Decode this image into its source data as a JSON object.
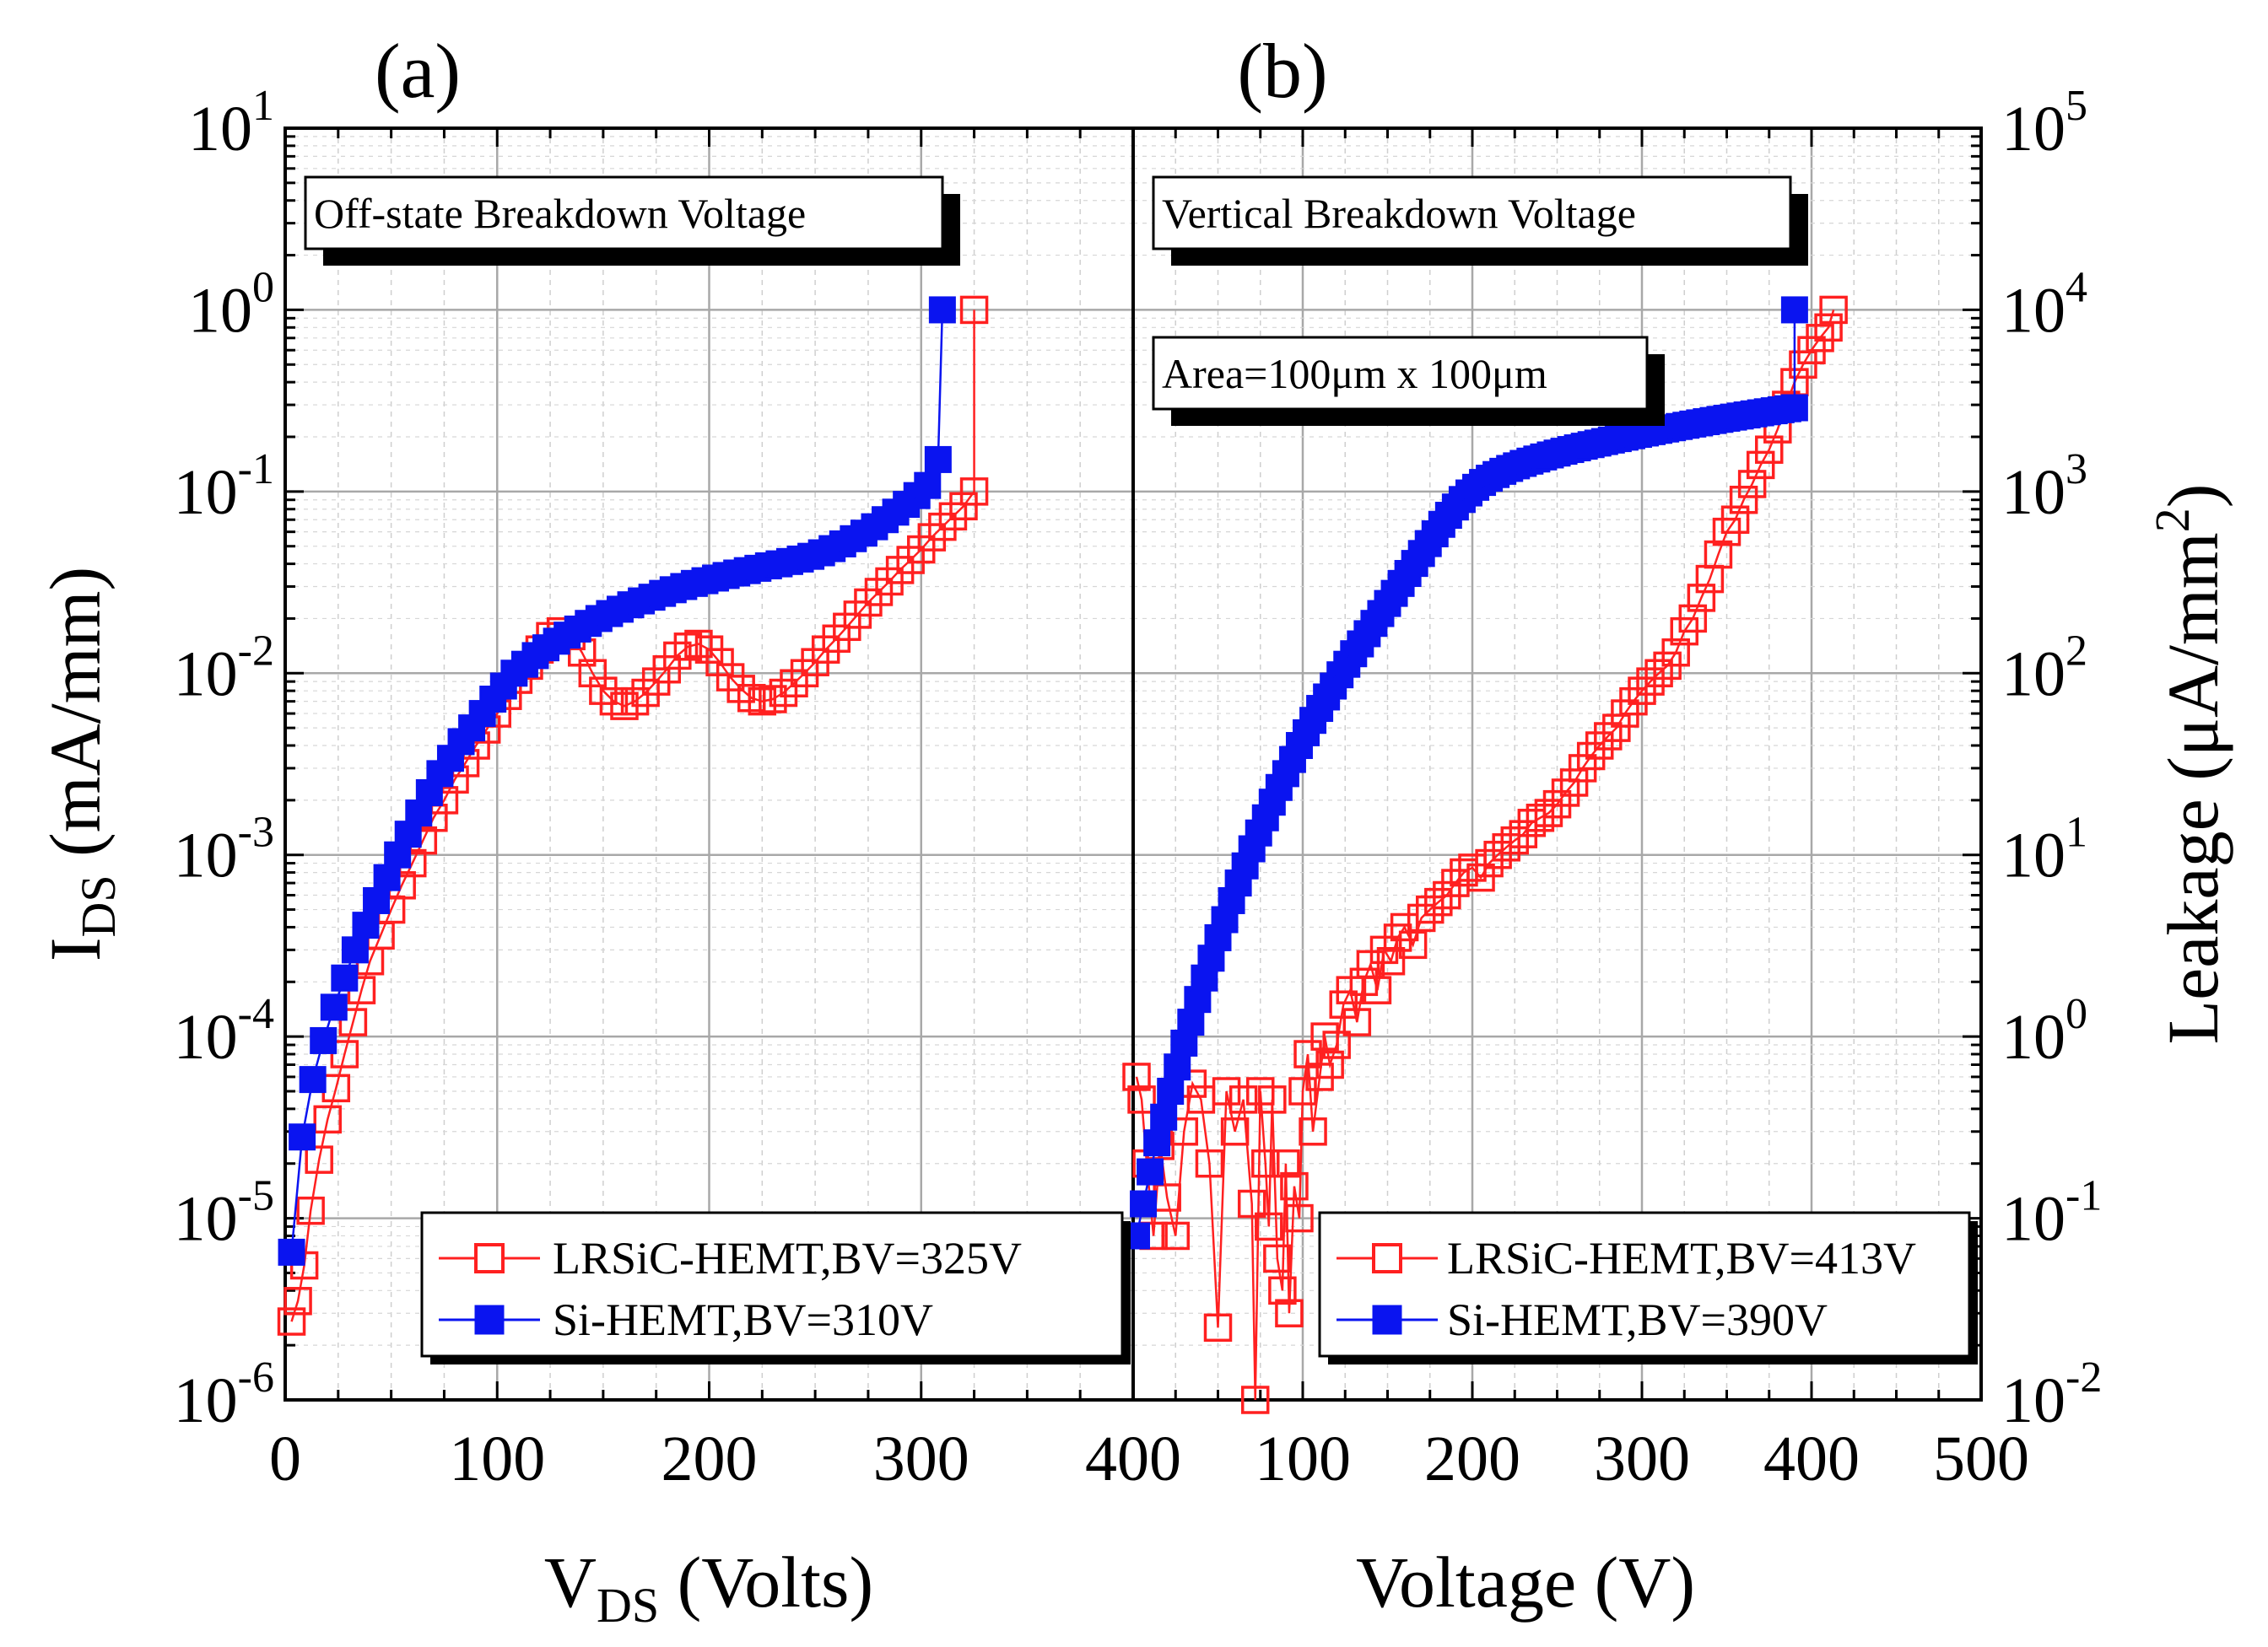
{
  "chart_data": [
    {
      "type": "scatter",
      "panel_label": "(a)",
      "annotation": "Off-state Breakdown Voltage",
      "xlabel": "V",
      "xlabel_sub": "DS",
      "xlabel_suffix": " (Volts)",
      "ylabel": "I",
      "ylabel_sub": "DS",
      "ylabel_suffix": " (mA/mm)",
      "yscale": "log",
      "xlim": [
        0,
        400
      ],
      "ylim": [
        1e-06,
        10
      ],
      "x_ticks": [
        "0",
        "100",
        "200",
        "300"
      ],
      "y_ticks": [
        {
          "base": "10",
          "exp": "1"
        },
        {
          "base": "10",
          "exp": "0"
        },
        {
          "base": "10",
          "exp": "-1"
        },
        {
          "base": "10",
          "exp": "-2"
        },
        {
          "base": "10",
          "exp": "-3"
        },
        {
          "base": "10",
          "exp": "-4"
        },
        {
          "base": "10",
          "exp": "-5"
        },
        {
          "base": "10",
          "exp": "-6"
        }
      ],
      "grid": true,
      "legend_position": "bottom-right",
      "series": [
        {
          "name": "LRSiC-HEMT,BV=325V",
          "color": "#ff2020",
          "marker": "open-square",
          "x": [
            3,
            6,
            9,
            12,
            16,
            20,
            24,
            28,
            32,
            36,
            40,
            45,
            50,
            55,
            60,
            65,
            70,
            75,
            80,
            85,
            90,
            95,
            100,
            105,
            110,
            115,
            120,
            125,
            130,
            135,
            140,
            145,
            150,
            155,
            160,
            165,
            170,
            175,
            180,
            185,
            190,
            195,
            200,
            205,
            210,
            215,
            220,
            225,
            230,
            235,
            240,
            245,
            250,
            255,
            260,
            265,
            270,
            275,
            280,
            285,
            290,
            295,
            300,
            305,
            310,
            315,
            320,
            325,
            325
          ],
          "y": [
            2.7e-06,
            3.5e-06,
            5.5e-06,
            1.1e-05,
            2.1e-05,
            3.5e-05,
            5.2e-05,
            8e-05,
            0.00012,
            0.00018,
            0.00026,
            0.00036,
            0.0005,
            0.00068,
            0.0009,
            0.0012,
            0.0016,
            0.002,
            0.0026,
            0.0032,
            0.004,
            0.0049,
            0.006,
            0.0075,
            0.0092,
            0.011,
            0.0135,
            0.016,
            0.017,
            0.016,
            0.013,
            0.01,
            0.008,
            0.007,
            0.0066,
            0.007,
            0.0078,
            0.009,
            0.0105,
            0.0125,
            0.014,
            0.0145,
            0.0135,
            0.0115,
            0.0095,
            0.0082,
            0.0073,
            0.007,
            0.0072,
            0.0078,
            0.0088,
            0.01,
            0.0115,
            0.0135,
            0.0155,
            0.018,
            0.021,
            0.0245,
            0.028,
            0.032,
            0.037,
            0.042,
            0.048,
            0.056,
            0.064,
            0.073,
            0.083,
            0.1,
            1.0
          ]
        },
        {
          "name": "Si-HEMT,BV=310V",
          "color": "#0a14f0",
          "marker": "filled-square",
          "x": [
            3,
            8,
            13,
            18,
            23,
            28,
            33,
            38,
            43,
            48,
            53,
            58,
            63,
            68,
            73,
            78,
            83,
            88,
            93,
            98,
            103,
            108,
            113,
            118,
            123,
            128,
            133,
            138,
            143,
            148,
            153,
            158,
            163,
            168,
            173,
            178,
            183,
            188,
            193,
            198,
            203,
            208,
            213,
            218,
            223,
            228,
            233,
            238,
            243,
            248,
            253,
            258,
            263,
            268,
            273,
            278,
            283,
            288,
            293,
            298,
            303,
            308,
            310
          ],
          "y": [
            6.5e-06,
            2.8e-05,
            5.8e-05,
            9.5e-05,
            0.000145,
            0.00021,
            0.0003,
            0.00041,
            0.00056,
            0.00075,
            0.001,
            0.0013,
            0.0017,
            0.0022,
            0.0028,
            0.0034,
            0.0042,
            0.005,
            0.006,
            0.0072,
            0.0085,
            0.01,
            0.0112,
            0.0125,
            0.0138,
            0.015,
            0.0162,
            0.0175,
            0.0188,
            0.02,
            0.0213,
            0.0225,
            0.0238,
            0.025,
            0.0262,
            0.0275,
            0.0288,
            0.03,
            0.0312,
            0.0323,
            0.0334,
            0.0345,
            0.0356,
            0.0367,
            0.0378,
            0.039,
            0.04,
            0.0412,
            0.0425,
            0.044,
            0.046,
            0.0485,
            0.0515,
            0.055,
            0.059,
            0.064,
            0.07,
            0.077,
            0.085,
            0.095,
            0.108,
            0.15,
            1.0
          ]
        }
      ]
    },
    {
      "type": "scatter",
      "panel_label": "(b)",
      "annotation": "Vertical Breakdown  Voltage",
      "annotation2": "Area=100μm x 100μm",
      "xlabel": "Voltage (V)",
      "ylabel": "Leakage (μA/mm",
      "ylabel_sup": "2",
      "ylabel_suffix": ")",
      "yscale": "log",
      "xlim": [
        0,
        500
      ],
      "ylim": [
        0.01,
        100000
      ],
      "x_ticks": [
        "400",
        "100",
        "200",
        "300",
        "400",
        "500"
      ],
      "y_ticks": [
        {
          "base": "10",
          "exp": "5"
        },
        {
          "base": "10",
          "exp": "4"
        },
        {
          "base": "10",
          "exp": "3"
        },
        {
          "base": "10",
          "exp": "2"
        },
        {
          "base": "10",
          "exp": "1"
        },
        {
          "base": "10",
          "exp": "0"
        },
        {
          "base": "10",
          "exp": "-1"
        },
        {
          "base": "10",
          "exp": "-2"
        }
      ],
      "grid": true,
      "legend_position": "bottom-right",
      "series": [
        {
          "name": "LRSiC-HEMT,BV=413V",
          "color": "#ff2020",
          "marker": "open-square",
          "x": [
            2,
            5,
            8,
            12,
            16,
            20,
            25,
            30,
            35,
            40,
            45,
            50,
            55,
            60,
            65,
            70,
            72,
            75,
            78,
            80,
            82,
            85,
            88,
            90,
            92,
            95,
            98,
            100,
            103,
            106,
            110,
            113,
            116,
            120,
            124,
            128,
            132,
            136,
            140,
            144,
            148,
            152,
            156,
            160,
            165,
            170,
            175,
            180,
            185,
            190,
            195,
            200,
            205,
            210,
            215,
            220,
            225,
            230,
            235,
            240,
            245,
            250,
            255,
            260,
            265,
            270,
            275,
            280,
            285,
            290,
            295,
            300,
            305,
            310,
            315,
            320,
            325,
            330,
            335,
            340,
            345,
            350,
            355,
            360,
            365,
            370,
            375,
            380,
            385,
            390,
            395,
            400,
            405,
            410,
            413
          ],
          "y": [
            0.6,
            0.45,
            0.2,
            0.08,
            0.25,
            0.13,
            0.08,
            0.3,
            0.55,
            0.45,
            0.2,
            0.025,
            0.5,
            0.3,
            0.45,
            0.12,
            0.01,
            0.5,
            0.2,
            0.09,
            0.45,
            0.06,
            0.04,
            0.2,
            0.03,
            0.15,
            0.1,
            0.5,
            0.8,
            0.3,
            0.6,
            1.0,
            0.7,
            0.9,
            1.5,
            1.8,
            1.2,
            2.0,
            2.5,
            1.8,
            3.0,
            2.6,
            3.5,
            4.0,
            3.2,
            4.5,
            5.0,
            5.5,
            6.0,
            7.0,
            8.0,
            8.5,
            7.5,
            9.0,
            10.0,
            11.0,
            12.0,
            13.0,
            15.0,
            16.0,
            17.0,
            19.0,
            22.0,
            25.0,
            30.0,
            35.0,
            40.0,
            45.0,
            50.0,
            60.0,
            70.0,
            80.0,
            90.0,
            100.0,
            110.0,
            130.0,
            170.0,
            200.0,
            260.0,
            330.0,
            450.0,
            600.0,
            700.0,
            900.0,
            1100.0,
            1400.0,
            1700.0,
            2200.0,
            3000.0,
            4000.0,
            5000.0,
            6000.0,
            7000.0,
            8000.0,
            10000.0
          ]
        },
        {
          "name": "Si-HEMT,BV=390V",
          "color": "#0a14f0",
          "marker": "filled-square",
          "x": [
            2,
            6,
            10,
            14,
            18,
            22,
            26,
            30,
            34,
            38,
            42,
            46,
            50,
            54,
            58,
            62,
            66,
            70,
            74,
            78,
            82,
            86,
            90,
            94,
            98,
            102,
            106,
            110,
            114,
            118,
            122,
            126,
            130,
            134,
            138,
            142,
            146,
            150,
            154,
            158,
            162,
            166,
            170,
            174,
            178,
            182,
            186,
            190,
            194,
            198,
            202,
            206,
            210,
            214,
            218,
            222,
            226,
            230,
            234,
            238,
            242,
            246,
            250,
            254,
            258,
            262,
            266,
            270,
            274,
            278,
            282,
            286,
            290,
            294,
            298,
            302,
            306,
            310,
            314,
            318,
            322,
            326,
            330,
            334,
            338,
            342,
            346,
            350,
            354,
            358,
            362,
            366,
            370,
            374,
            378,
            382,
            386,
            390,
            390
          ],
          "y": [
            0.08,
            0.12,
            0.18,
            0.26,
            0.36,
            0.5,
            0.68,
            0.92,
            1.2,
            1.6,
            2.1,
            2.7,
            3.5,
            4.4,
            5.6,
            7.0,
            8.7,
            10.8,
            13.2,
            16.0,
            19.5,
            23.5,
            28.0,
            33.5,
            40.0,
            47.0,
            55.0,
            64.0,
            74.0,
            85.0,
            98.0,
            112.0,
            128.0,
            145.0,
            165.0,
            188.0,
            213.0,
            242.0,
            275.0,
            312.0,
            354.0,
            402.0,
            456.0,
            517.0,
            585.0,
            660.0,
            740.0,
            822.0,
            904.0,
            982.0,
            1055.0,
            1122.0,
            1184.0,
            1240.0,
            1292.0,
            1340.0,
            1385.0,
            1428.0,
            1470.0,
            1510.0,
            1550.0,
            1590.0,
            1628.0,
            1666.0,
            1703.0,
            1740.0,
            1776.0,
            1812.0,
            1848.0,
            1884.0,
            1920.0,
            1956.0,
            1992.0,
            2028.0,
            2064.0,
            2100.0,
            2136.0,
            2172.0,
            2208.0,
            2244.0,
            2280.0,
            2316.0,
            2352.0,
            2388.0,
            2424.0,
            2460.0,
            2496.0,
            2532.0,
            2568.0,
            2604.0,
            2640.0,
            2676.0,
            2712.0,
            2748.0,
            2784.0,
            2820.0,
            2856.0,
            2892.0,
            10000.0
          ]
        }
      ]
    }
  ]
}
